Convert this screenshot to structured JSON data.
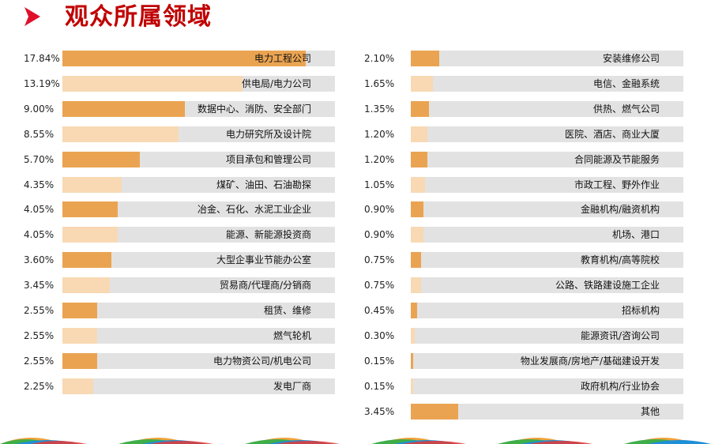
{
  "page": {
    "title": "观众所属领域"
  },
  "colors": {
    "title": "#c00000",
    "arrow": "#e0102a",
    "track": "#e2e2e2",
    "bar_dark": "#eaa451",
    "bar_light": "#f8d9b3"
  },
  "chart_data": [
    {
      "type": "bar",
      "orientation": "horizontal",
      "title": "",
      "xlim": [
        0,
        20
      ],
      "categories": [
        "电力工程公司",
        "供电局/电力公司",
        "数据中心、消防、安全部门",
        "电力研究所及设计院",
        "项目承包和管理公司",
        "煤矿、油田、石油勘探",
        "冶金、石化、水泥工业企业",
        "能源、新能源投资商",
        "大型企事业节能办公室",
        "贸易商/代理商/分销商",
        "租赁、维修",
        "燃气轮机",
        "电力物资公司/机电公司",
        "发电厂商"
      ],
      "values": [
        17.84,
        13.19,
        9.0,
        8.55,
        5.7,
        4.35,
        4.05,
        4.05,
        3.6,
        3.45,
        2.55,
        2.55,
        2.55,
        2.25
      ],
      "value_labels": [
        "17.84%",
        "13.19%",
        "9.00%",
        "8.55%",
        "5.70%",
        "4.35%",
        "4.05%",
        "4.05%",
        "3.60%",
        "3.45%",
        "2.55%",
        "2.55%",
        "2.55%",
        "2.25%"
      ],
      "bar_colors": [
        "dark",
        "light",
        "dark",
        "light",
        "dark",
        "light",
        "dark",
        "light",
        "dark",
        "light",
        "dark",
        "light",
        "dark",
        "light"
      ]
    },
    {
      "type": "bar",
      "orientation": "horizontal",
      "title": "",
      "xlim": [
        0,
        20
      ],
      "categories": [
        "安装维修公司",
        "电信、金融系统",
        "供热、燃气公司",
        "医院、酒店、商业大厦",
        "合同能源及节能服务",
        "市政工程、野外作业",
        "金融机构/融资机构",
        "机场、港口",
        "教育机构/高等院校",
        "公路、铁路建设施工企业",
        "招标机构",
        "能源资讯/咨询公司",
        "物业发展商/房地产/基础建设开发",
        "政府机构/行业协会",
        "其他"
      ],
      "values": [
        2.1,
        1.65,
        1.35,
        1.2,
        1.2,
        1.05,
        0.9,
        0.9,
        0.75,
        0.75,
        0.45,
        0.3,
        0.15,
        0.15,
        3.45
      ],
      "value_labels": [
        "2.10%",
        "1.65%",
        "1.35%",
        "1.20%",
        "1.20%",
        "1.05%",
        "0.90%",
        "0.90%",
        "0.75%",
        "0.75%",
        "0.45%",
        "0.30%",
        "0.15%",
        "0.15%",
        "3.45%"
      ],
      "bar_colors": [
        "dark",
        "light",
        "dark",
        "light",
        "dark",
        "light",
        "dark",
        "light",
        "dark",
        "light",
        "dark",
        "light",
        "dark",
        "light",
        "dark"
      ]
    }
  ]
}
